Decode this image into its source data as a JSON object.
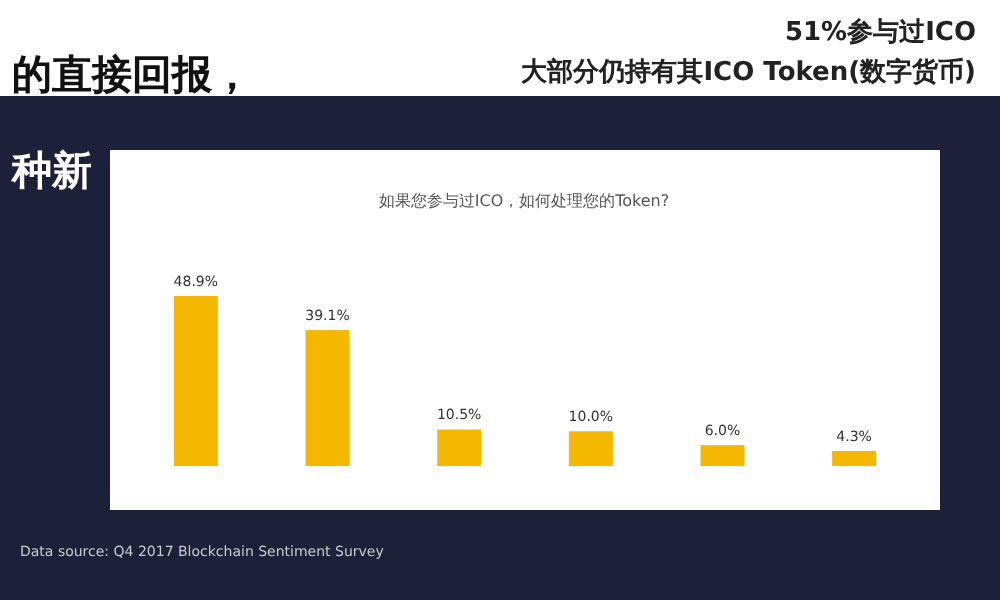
{
  "chart_data": {
    "type": "bar",
    "title": "51%参与过ICO",
    "subtitle": "大部分仍持有其ICO Token(数字货币)",
    "annotations": [
      "如果您参与过ICO，如何处理您的Token?",
      "的直接回报，",
      "种新",
      "Data source: Q4 2017 Blockchain Sentiment Survey"
    ],
    "categories": [
      null,
      null,
      null,
      null,
      null,
      null
    ],
    "values": [
      48.9,
      39.1,
      10.5,
      10.0,
      6.0,
      4.3
    ],
    "value_labels": [
      "48.9%",
      "39.1%",
      "10.5%",
      "10.0%",
      "6.0%",
      "4.3%"
    ],
    "color": "#f5b800"
  }
}
